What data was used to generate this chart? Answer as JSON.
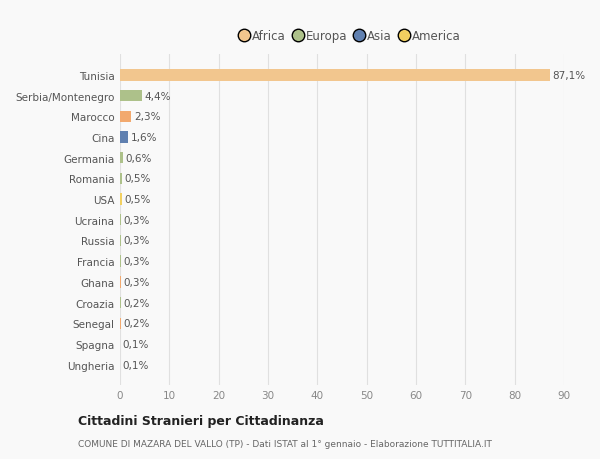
{
  "countries": [
    "Tunisia",
    "Serbia/Montenegro",
    "Marocco",
    "Cina",
    "Germania",
    "Romania",
    "USA",
    "Ucraina",
    "Russia",
    "Francia",
    "Ghana",
    "Croazia",
    "Senegal",
    "Spagna",
    "Ungheria"
  ],
  "values": [
    87.1,
    4.4,
    2.3,
    1.6,
    0.6,
    0.5,
    0.5,
    0.3,
    0.3,
    0.3,
    0.3,
    0.2,
    0.2,
    0.1,
    0.1
  ],
  "labels": [
    "87,1%",
    "4,4%",
    "2,3%",
    "1,6%",
    "0,6%",
    "0,5%",
    "0,5%",
    "0,3%",
    "0,3%",
    "0,3%",
    "0,3%",
    "0,2%",
    "0,2%",
    "0,1%",
    "0,1%"
  ],
  "colors": [
    "#f2c68e",
    "#adc18a",
    "#f2a96e",
    "#6080b0",
    "#adc18a",
    "#adc18a",
    "#f2d060",
    "#adc18a",
    "#adc18a",
    "#adc18a",
    "#f2a96e",
    "#adc18a",
    "#f2a96e",
    "#adc18a",
    "#adc18a"
  ],
  "legend": [
    {
      "label": "Africa",
      "color": "#f2c68e"
    },
    {
      "label": "Europa",
      "color": "#adc18a"
    },
    {
      "label": "Asia",
      "color": "#6080b0"
    },
    {
      "label": "America",
      "color": "#f2d060"
    }
  ],
  "title": "Cittadini Stranieri per Cittadinanza",
  "subtitle": "COMUNE DI MAZARA DEL VALLO (TP) - Dati ISTAT al 1° gennaio - Elaborazione TUTTITALIA.IT",
  "xlim": [
    0,
    90
  ],
  "xticks": [
    0,
    10,
    20,
    30,
    40,
    50,
    60,
    70,
    80,
    90
  ],
  "background_color": "#f9f9f9",
  "grid_color": "#e0e0e0"
}
